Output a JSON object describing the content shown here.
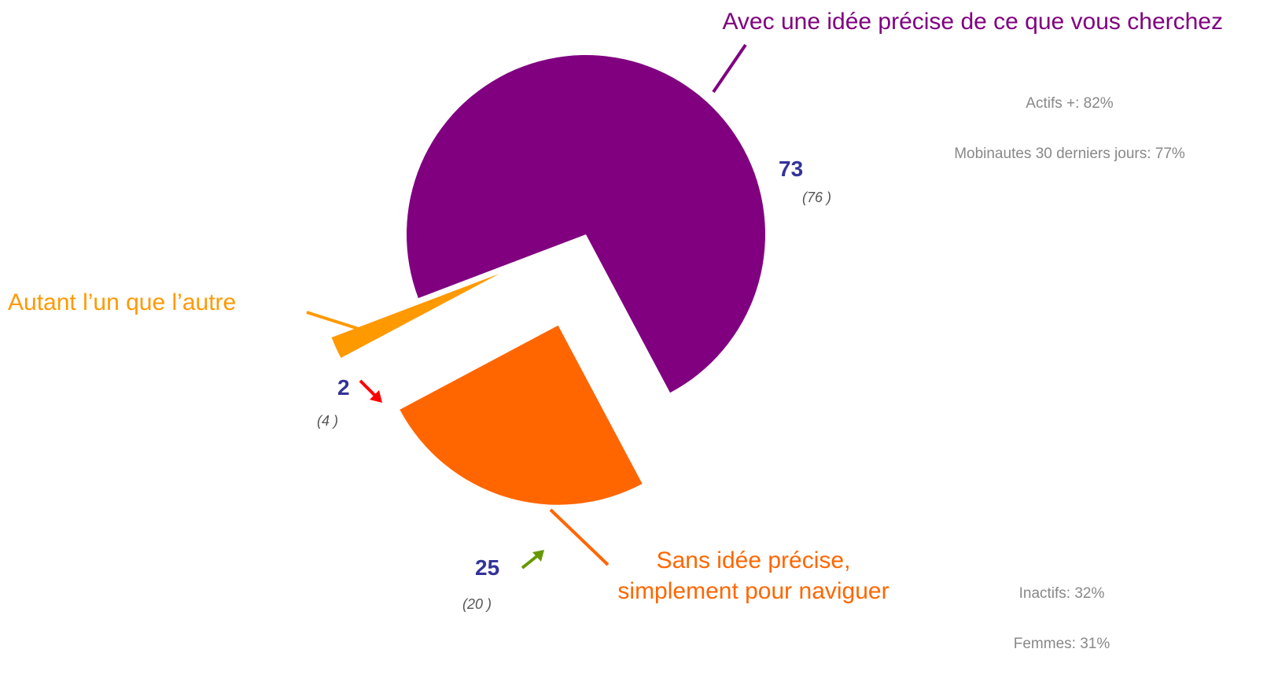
{
  "chart_data": {
    "type": "pie",
    "categories": [
      "Avec une idée précise de ce que vous cherchez",
      "Autant l’un que l’autre",
      "Sans idée précise,\nsimplement pour naviguer"
    ],
    "values": [
      73,
      2,
      25
    ],
    "colors": [
      "#800080",
      "#ff9900",
      "#ff6600"
    ],
    "previous_values": [
      76,
      4,
      20
    ],
    "previous_labels": [
      "(76 )",
      "(4 )",
      "(20 )"
    ],
    "notes_top": [
      "Actifs +: 82%",
      "Mobinautes 30 derniers jours: 77%"
    ],
    "notes_bottom": [
      "Inactifs: 32%",
      "Femmes: 31%"
    ]
  }
}
